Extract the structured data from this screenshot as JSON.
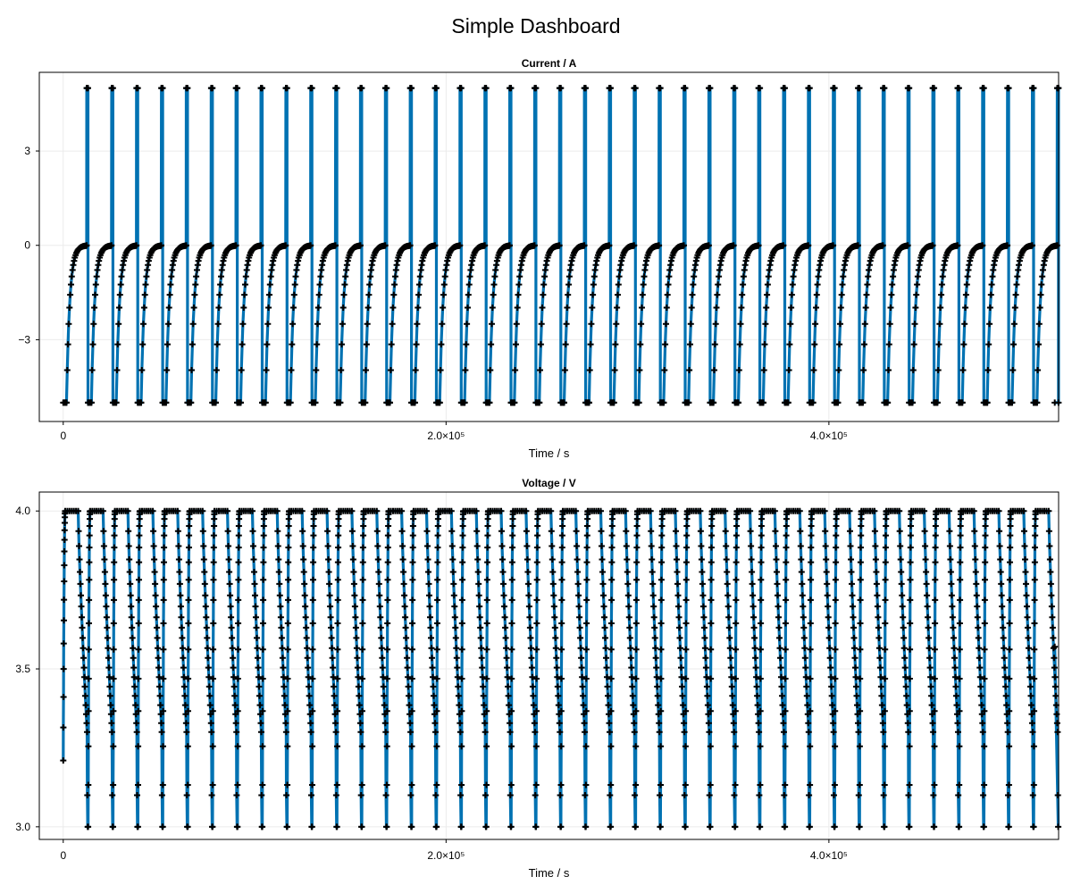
{
  "title": "Simple Dashboard",
  "colors": {
    "line": "#0072b2",
    "marker": "#000000",
    "grid": "#ebebeb",
    "frame": "#000000"
  },
  "chart_data": [
    {
      "type": "line",
      "title": "Current  /  A",
      "xlabel": "Time  /  s",
      "ylabel": "",
      "xlim": [
        -12500,
        520000
      ],
      "ylim": [
        -5.6,
        5.5
      ],
      "xticks": [
        0,
        200000,
        400000
      ],
      "xtick_labels": [
        "0",
        "2.0×10⁵",
        "4.0×10⁵"
      ],
      "yticks": [
        -3,
        0,
        3
      ],
      "ytick_labels": [
        "−3",
        "0",
        "3"
      ],
      "grid": true,
      "series": [
        {
          "kind": "cccv-current",
          "cycles": 40,
          "period": 13000,
          "x_start": 0,
          "x_end": 518000,
          "discharge_value": -5,
          "charge_value": 5,
          "rest_value": 0,
          "phases": {
            "discharge_end": 0.13,
            "taper_end": 0.92
          }
        }
      ]
    },
    {
      "type": "line",
      "title": "Voltage  /  V",
      "xlabel": "Time  /  s",
      "ylabel": "",
      "xlim": [
        -12500,
        520000
      ],
      "ylim": [
        2.96,
        4.06
      ],
      "xticks": [
        0,
        200000,
        400000
      ],
      "xtick_labels": [
        "0",
        "2.0×10⁵",
        "4.0×10⁵"
      ],
      "yticks": [
        3.0,
        3.5,
        4.0
      ],
      "ytick_labels": [
        "3.0",
        "3.5",
        "4.0"
      ],
      "grid": true,
      "series": [
        {
          "kind": "cccv-voltage",
          "cycles": 40,
          "period": 13000,
          "x_start": 0,
          "x_end": 518000,
          "min_value": 3.0,
          "max_value": 4.0,
          "first_start_value": 3.21,
          "end_value": 3.57
        }
      ]
    }
  ]
}
